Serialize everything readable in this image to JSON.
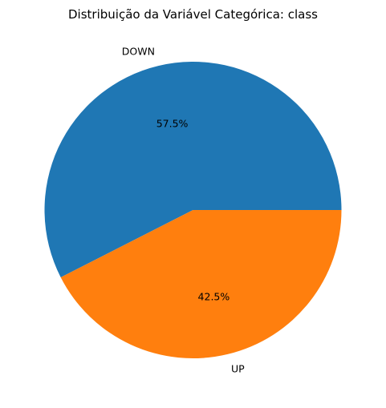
{
  "chart_data": {
    "type": "pie",
    "title": "Distribuição da Variável Categórica: class",
    "labels": [
      "DOWN",
      "UP"
    ],
    "values": [
      57.5,
      42.5
    ],
    "percent_labels": [
      "57.5%",
      "42.5%"
    ],
    "colors": [
      "#1f77b4",
      "#ff7f0e"
    ],
    "start_angle_deg": 0,
    "direction": "counterclockwise"
  }
}
